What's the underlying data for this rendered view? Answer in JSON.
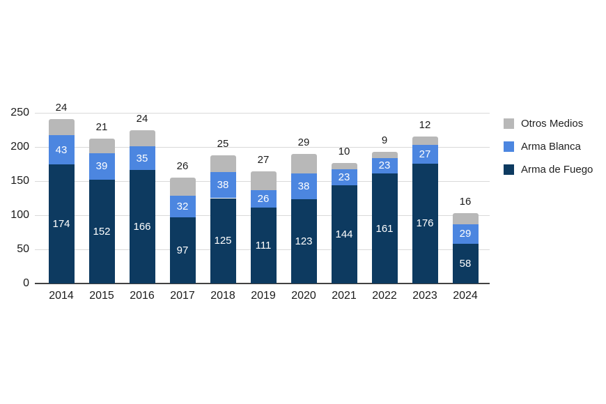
{
  "chart_data": {
    "type": "bar",
    "stacked": true,
    "title": "",
    "xlabel": "",
    "ylabel": "",
    "categories": [
      "2014",
      "2015",
      "2016",
      "2017",
      "2018",
      "2019",
      "2020",
      "2021",
      "2022",
      "2023",
      "2024"
    ],
    "series": [
      {
        "name": "Arma de Fuego",
        "color": "#0d3a60",
        "label_color": "#ffffff",
        "label_position": "inside",
        "values": [
          174,
          152,
          166,
          97,
          125,
          111,
          123,
          144,
          161,
          176,
          58
        ]
      },
      {
        "name": "Arma Blanca",
        "color": "#4c86e0",
        "label_color": "#ffffff",
        "label_position": "inside",
        "values": [
          43,
          39,
          35,
          32,
          38,
          26,
          38,
          23,
          23,
          27,
          29
        ]
      },
      {
        "name": "Otros Medios",
        "color": "#b8b8b8",
        "label_color": "#1a1a1a",
        "label_position": "above",
        "values": [
          24,
          21,
          24,
          26,
          25,
          27,
          29,
          10,
          9,
          12,
          16
        ]
      }
    ],
    "totals": [
      241,
      212,
      225,
      155,
      188,
      164,
      190,
      177,
      193,
      215,
      103
    ],
    "y_ticks": [
      0,
      50,
      100,
      150,
      200,
      250
    ],
    "ylim": [
      0,
      250
    ],
    "grid": true,
    "legend_position": "right",
    "legend_order": [
      "Otros Medios",
      "Arma Blanca",
      "Arma de Fuego"
    ]
  },
  "colors": {
    "background": "#ffffff",
    "gridline": "#d9d9d9",
    "baseline": "#424242",
    "axis_text": "#1a1a1a",
    "legend_text": "#212121"
  }
}
